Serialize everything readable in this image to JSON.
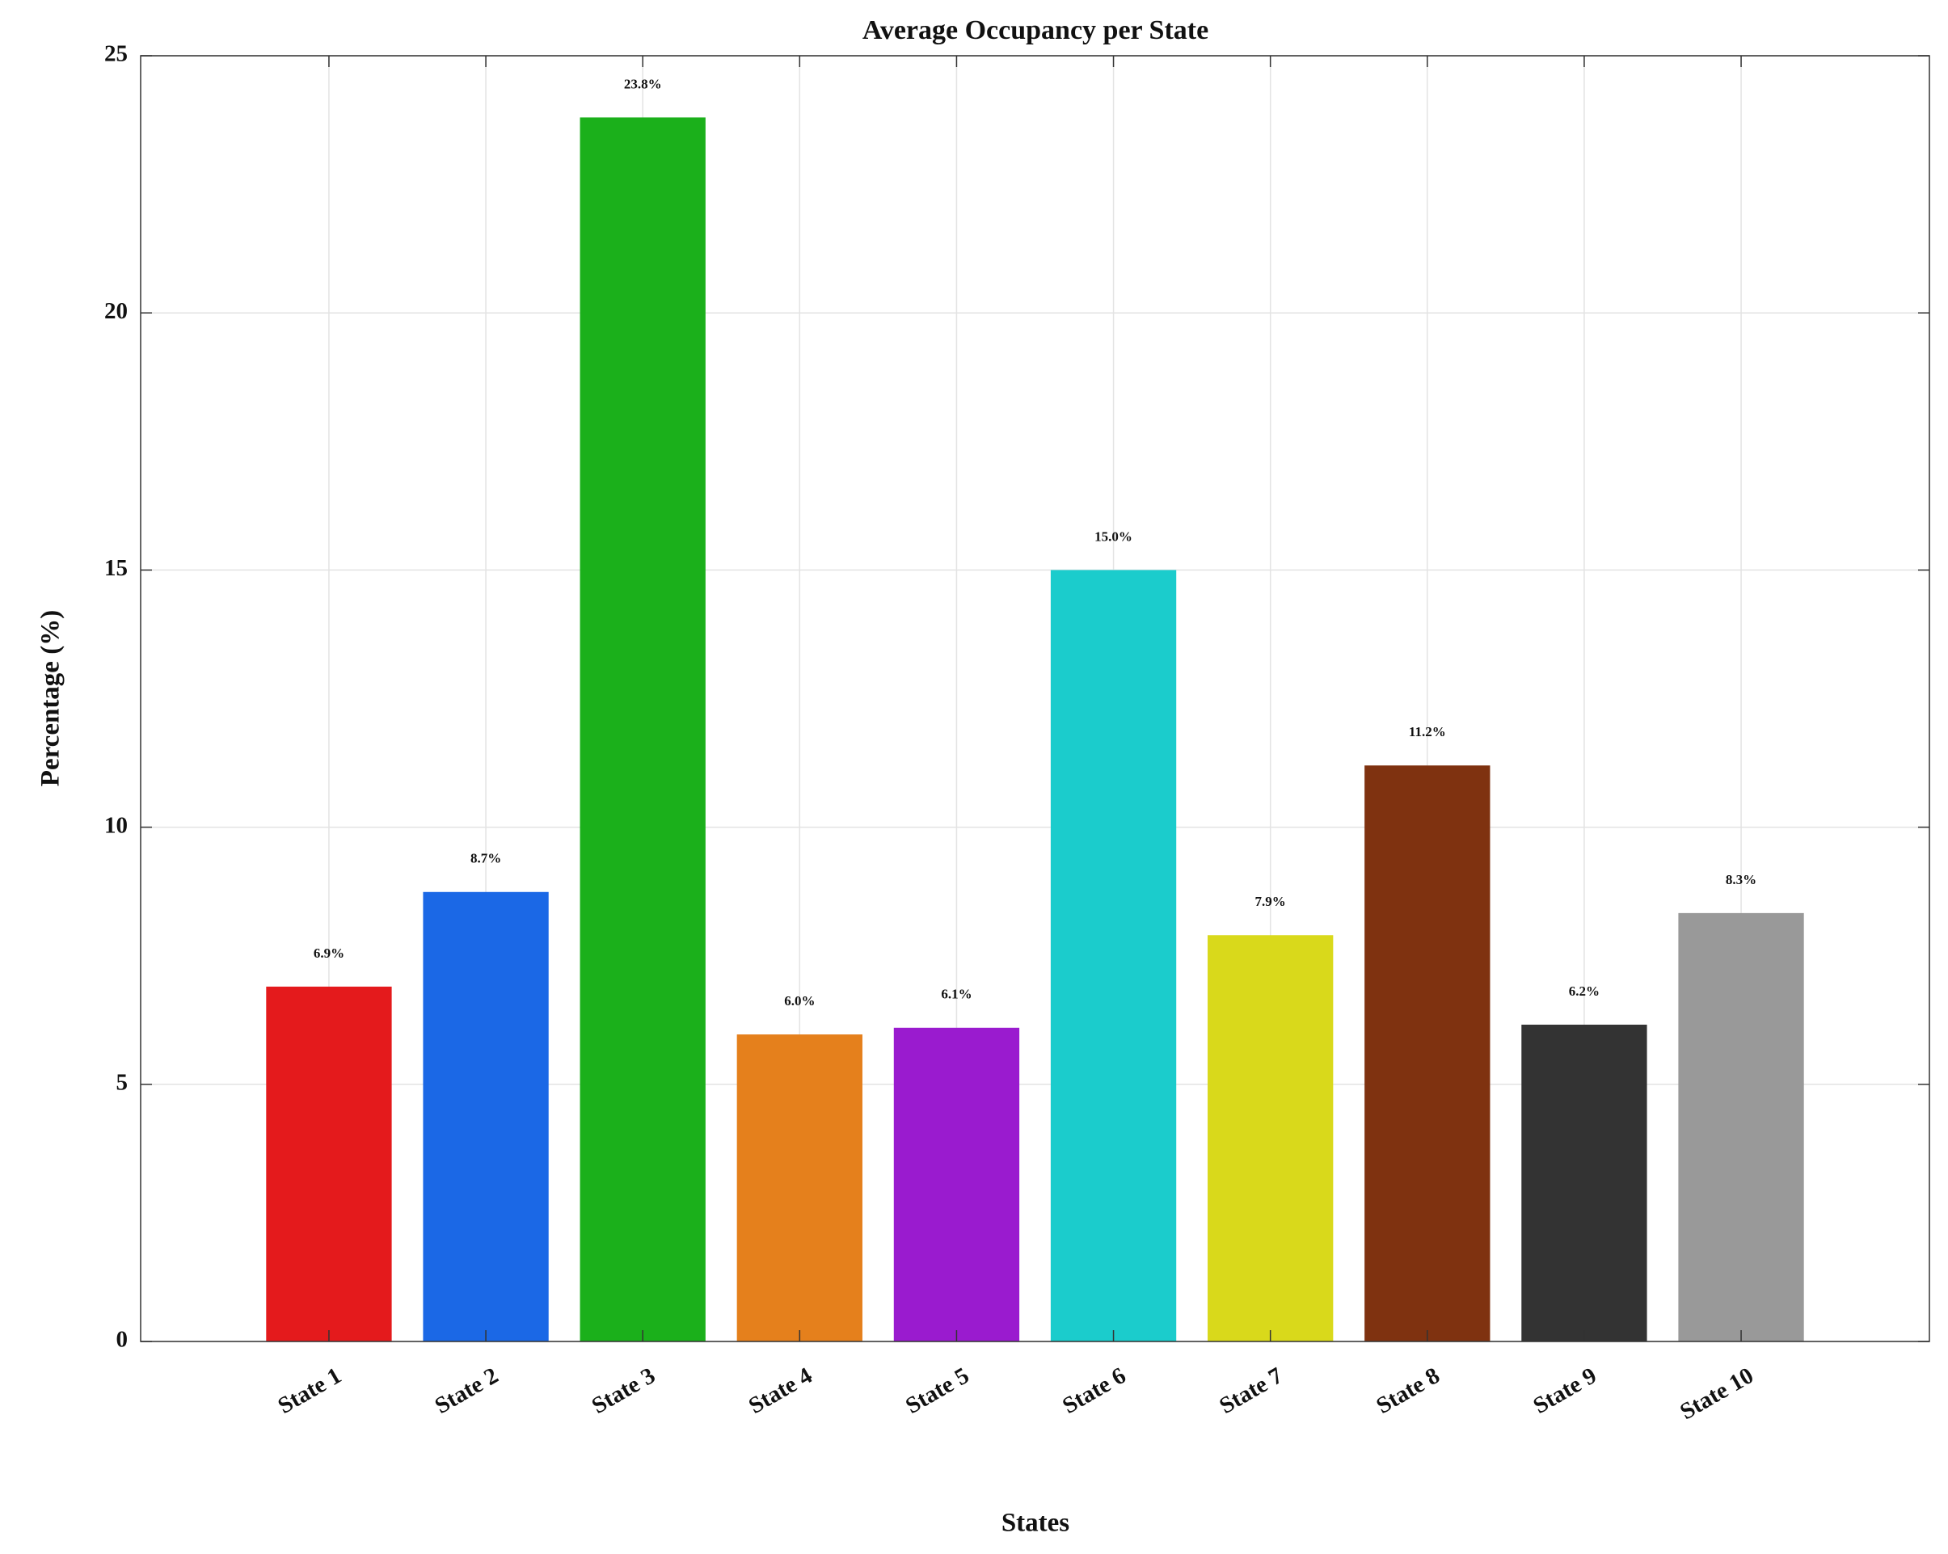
{
  "chart_data": {
    "type": "bar",
    "title": "Average Occupancy per State",
    "x_label": "States",
    "y_label": "Percentage (%)",
    "categories": [
      "State 1",
      "State 2",
      "State 3",
      "State 4",
      "State 5",
      "State 6",
      "State 7",
      "State 8",
      "State 9",
      "State 10"
    ],
    "values": [
      6.9,
      8.74,
      23.8,
      5.97,
      6.1,
      15.0,
      7.9,
      11.2,
      6.16,
      8.33
    ],
    "value_labels": [
      "6.9%",
      "8.7%",
      "23.8%",
      "6.0%",
      "6.1%",
      "15.0%",
      "7.9%",
      "11.2%",
      "6.2%",
      "8.3%"
    ],
    "colors": [
      "#e41a1c",
      "#1b68e6",
      "#1bb01b",
      "#e5801c",
      "#9a1bcf",
      "#1bcccc",
      "#d9d91b",
      "#7f3210",
      "#333333",
      "#999999"
    ],
    "ylim": [
      0,
      25
    ],
    "yticks": [
      0,
      5,
      10,
      15,
      20,
      25
    ],
    "grid": true
  }
}
